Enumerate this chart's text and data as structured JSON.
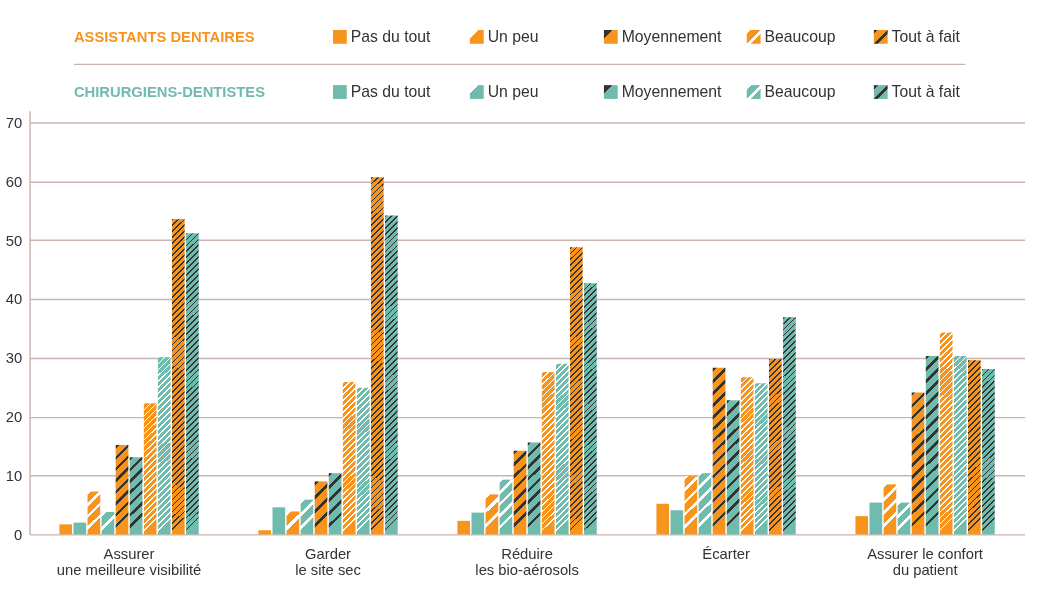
{
  "chart_data": {
    "type": "bar",
    "categories": [
      "Assurer\nune meilleure visibilité",
      "Garder\nle site sec",
      "Réduire\nles bio-aérosols",
      "Écarter",
      "Assurer le confort\ndu patient"
    ],
    "series": [
      {
        "name": "Pas du tout",
        "color": "#f7941d",
        "values": [
          1.7,
          0.7,
          2.3,
          5.2,
          3.1
        ]
      },
      {
        "name": "Un peu",
        "color": "#f7941d",
        "values": [
          7.3,
          3.9,
          6.8,
          9.9,
          8.5
        ]
      },
      {
        "name": "Moyennement",
        "color": "#f7941d",
        "values": [
          15.2,
          9.0,
          14.2,
          28.3,
          24.1
        ]
      },
      {
        "name": "Beaucoup",
        "color": "#f7941d",
        "values": [
          22.3,
          25.9,
          27.6,
          26.7,
          34.3
        ]
      },
      {
        "name": "Tout à fait",
        "color": "#f7941d",
        "values": [
          53.6,
          60.7,
          48.8,
          29.8,
          29.6
        ]
      },
      {
        "name": "Pas du tout",
        "color": "#6fbbae",
        "values": [
          2.0,
          4.6,
          3.7,
          4.1,
          5.4
        ]
      },
      {
        "name": "Un peu",
        "color": "#6fbbae",
        "values": [
          3.8,
          5.9,
          9.3,
          10.4,
          5.4
        ]
      },
      {
        "name": "Moyennement",
        "color": "#6fbbae",
        "values": [
          13.1,
          10.4,
          15.6,
          22.8,
          30.3
        ]
      },
      {
        "name": "Beaucoup",
        "color": "#6fbbae",
        "values": [
          30.1,
          24.9,
          29.0,
          25.7,
          30.3
        ]
      },
      {
        "name": "Tout à fait",
        "color": "#6fbbae",
        "values": [
          51.2,
          54.2,
          42.7,
          36.9,
          28.1
        ]
      }
    ],
    "annotations": [
      "ASSISTANTS DENTAIRES",
      "CHIRURGIENS-DENTISTES"
    ],
    "ylim": [
      0,
      72
    ],
    "yticks": [
      0,
      10,
      20,
      30,
      40,
      50,
      60,
      70
    ],
    "grid": "y",
    "legend": "top"
  }
}
